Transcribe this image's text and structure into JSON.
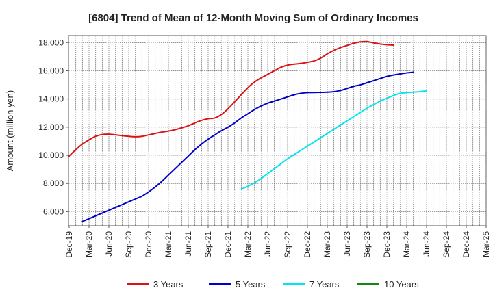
{
  "chart_data": {
    "type": "line",
    "title": "[6804]  Trend of Mean of 12-Month Moving Sum of Ordinary Incomes",
    "xlabel": "",
    "ylabel": "Amount (million yen)",
    "ylim": [
      5000,
      18500
    ],
    "yticks": [
      6000,
      8000,
      10000,
      12000,
      14000,
      16000,
      18000
    ],
    "ytick_labels": [
      "6,000",
      "8,000",
      "10,000",
      "12,000",
      "14,000",
      "16,000",
      "18,000"
    ],
    "xticks": [
      "Dec-19",
      "Mar-20",
      "Jun-20",
      "Sep-20",
      "Dec-20",
      "Mar-21",
      "Jun-21",
      "Sep-21",
      "Dec-21",
      "Mar-22",
      "Jun-22",
      "Sep-22",
      "Dec-22",
      "Mar-23",
      "Jun-23",
      "Sep-23",
      "Dec-23",
      "Mar-24",
      "Jun-24",
      "Sep-24",
      "Dec-24",
      "Mar-25"
    ],
    "grid": true,
    "legend_position": "bottom",
    "series": [
      {
        "name": "3 Years",
        "color": "#dd1111",
        "start_index": 0,
        "values": [
          9950,
          10400,
          10800,
          11100,
          11350,
          11480,
          11500,
          11450,
          11400,
          11350,
          11320,
          11350,
          11450,
          11550,
          11650,
          11720,
          11820,
          11950,
          12100,
          12300,
          12480,
          12600,
          12650,
          12900,
          13300,
          13800,
          14300,
          14800,
          15200,
          15500,
          15750,
          16000,
          16250,
          16400,
          16470,
          16520,
          16600,
          16700,
          16900,
          17200,
          17450,
          17650,
          17800,
          17950,
          18050,
          18070,
          17980,
          17900,
          17850,
          17820
        ]
      },
      {
        "name": "5 Years",
        "color": "#0000cc",
        "start_index": 2,
        "values": [
          5300,
          5500,
          5700,
          5900,
          6100,
          6300,
          6500,
          6700,
          6900,
          7100,
          7400,
          7750,
          8150,
          8600,
          9050,
          9500,
          9950,
          10400,
          10800,
          11150,
          11450,
          11750,
          12000,
          12300,
          12650,
          12950,
          13250,
          13500,
          13700,
          13850,
          14000,
          14150,
          14300,
          14400,
          14450,
          14460,
          14470,
          14480,
          14520,
          14600,
          14750,
          14900,
          15000,
          15150,
          15300,
          15450,
          15600,
          15700,
          15780,
          15850,
          15900
        ]
      },
      {
        "name": "7 Years",
        "color": "#00e5ee",
        "start_index": 26,
        "values": [
          7600,
          7800,
          8050,
          8350,
          8700,
          9050,
          9400,
          9750,
          10050,
          10350,
          10650,
          10950,
          11250,
          11550,
          11850,
          12150,
          12450,
          12750,
          13050,
          13350,
          13600,
          13850,
          14050,
          14250,
          14400,
          14450,
          14480,
          14520,
          14570
        ]
      },
      {
        "name": "10 Years",
        "color": "#118811",
        "start_index": 0,
        "values": []
      }
    ]
  }
}
